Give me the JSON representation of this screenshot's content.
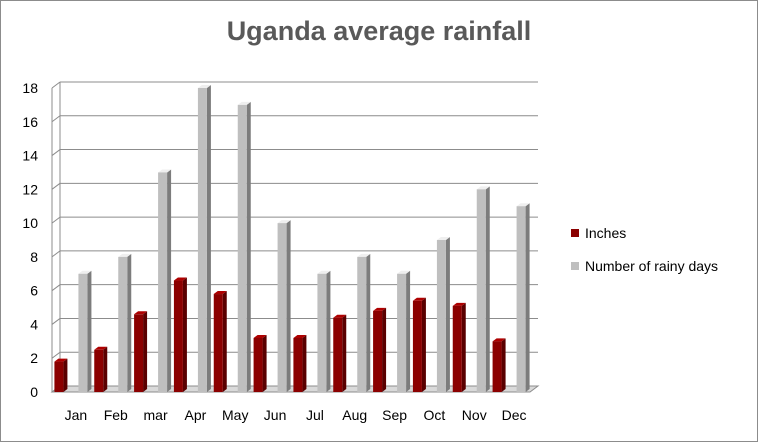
{
  "chart_data": {
    "type": "bar",
    "title": "Uganda average rainfall",
    "categories": [
      "Jan",
      "Feb",
      "mar",
      "Apr",
      "May",
      "Jun",
      "Jul",
      "Aug",
      "Sep",
      "Oct",
      "Nov",
      "Dec"
    ],
    "series": [
      {
        "name": "Inches",
        "color": "#8b0000",
        "values": [
          1.8,
          2.5,
          4.6,
          6.6,
          5.8,
          3.2,
          3.2,
          4.4,
          4.8,
          5.4,
          5.1,
          3.0
        ]
      },
      {
        "name": "Number of rainy days",
        "color": "#bfbfbf",
        "values": [
          7,
          8,
          13,
          18,
          17,
          10,
          7,
          8,
          7,
          9,
          12,
          11
        ]
      }
    ],
    "ylim": [
      0,
      18
    ],
    "yticks": [
      0,
      2,
      4,
      6,
      8,
      10,
      12,
      14,
      16,
      18
    ],
    "grid": true,
    "legend_position": "right"
  }
}
